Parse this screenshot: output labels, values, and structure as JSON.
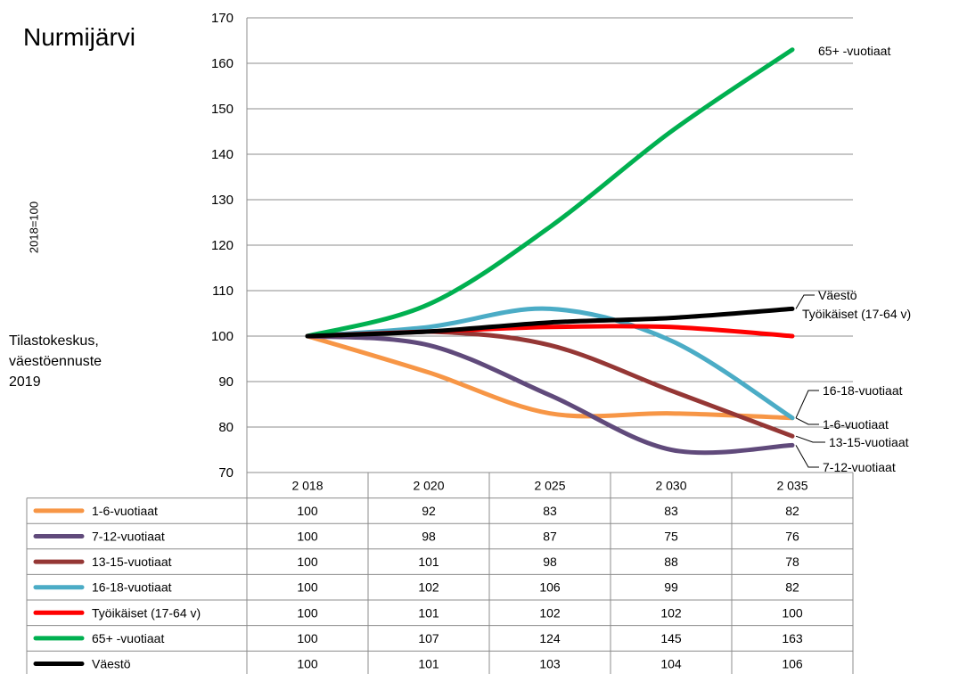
{
  "chart_data": {
    "type": "line",
    "title": "Nurmijärvi",
    "ylabel": "2018=100",
    "source": [
      "Tilastokeskus,",
      "väestöennuste",
      "2019"
    ],
    "categories": [
      "2 018",
      "2 020",
      "2 025",
      "2 030",
      "2 035"
    ],
    "x": [
      2018,
      2020,
      2025,
      2030,
      2035
    ],
    "ylim": [
      70,
      170
    ],
    "yticks": [
      "70",
      "80",
      "90",
      "100",
      "110",
      "120",
      "130",
      "140",
      "150",
      "160",
      "170"
    ],
    "grid": true,
    "legend": "table-below",
    "series": [
      {
        "name": "1-6-vuotiaat",
        "color": "#F79646",
        "values": [
          100,
          92,
          83,
          83,
          82
        ],
        "end_label": "1-6-vuotiaat"
      },
      {
        "name": "7-12-vuotiaat",
        "color": "#604A7B",
        "values": [
          100,
          98,
          87,
          75,
          76
        ],
        "end_label": "7-12-vuotiaat"
      },
      {
        "name": "13-15-vuotiaat",
        "color": "#953735",
        "values": [
          100,
          101,
          98,
          88,
          78
        ],
        "end_label": "13-15-vuotiaat"
      },
      {
        "name": "16-18-vuotiaat",
        "color": "#4BACC6",
        "values": [
          100,
          102,
          106,
          99,
          82
        ],
        "end_label": "16-18-vuotiaat"
      },
      {
        "name": "Työikäiset (17-64 v)",
        "color": "#FF0000",
        "values": [
          100,
          101,
          102,
          102,
          100
        ],
        "end_label": "Työikäiset (17-64 v)"
      },
      {
        "name": "65+ -vuotiaat",
        "color": "#00B050",
        "values": [
          100,
          107,
          124,
          145,
          163
        ],
        "end_label": "65+ -vuotiaat"
      },
      {
        "name": "Väestö",
        "color": "#000000",
        "values": [
          100,
          101,
          103,
          104,
          106
        ],
        "end_label": "Väestö"
      }
    ]
  }
}
